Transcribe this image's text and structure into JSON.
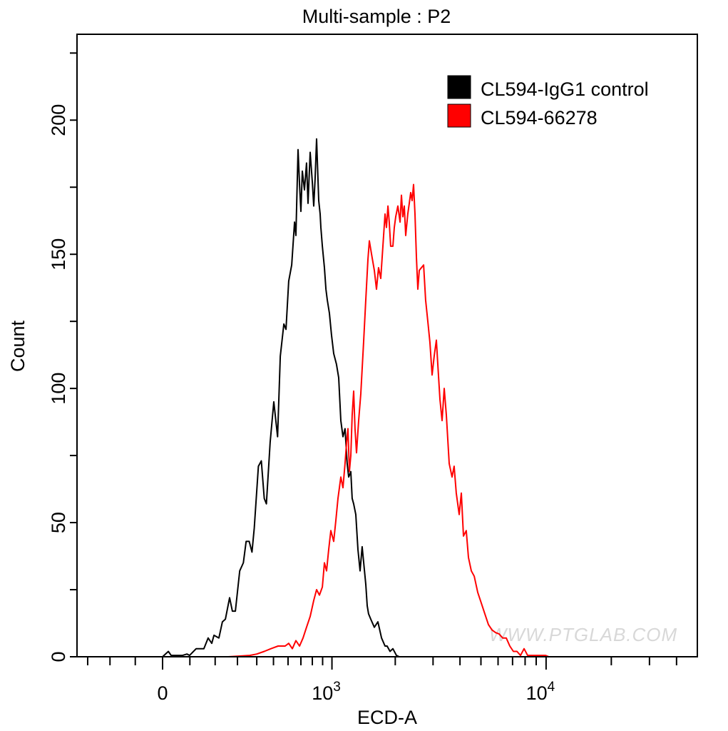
{
  "chart_data": {
    "type": "line",
    "title": "Multi-sample : P2",
    "xlabel": "ECD-A",
    "ylabel": "Count",
    "x_scale": "biexponential",
    "xlim": [
      -350,
      50000
    ],
    "ylim": [
      0,
      232
    ],
    "grid": false,
    "legend_position": "top-right",
    "watermark": "WWW.PTGLAB.COM",
    "x_major_ticks": [
      {
        "value": 0,
        "base": "0",
        "exp": ""
      },
      {
        "value": 1000,
        "base": "10",
        "exp": "3"
      },
      {
        "value": 10000,
        "base": "10",
        "exp": "4"
      }
    ],
    "x_minor_ticks": [
      -300,
      -200,
      -100,
      100,
      200,
      300,
      400,
      500,
      600,
      700,
      800,
      900,
      2000,
      3000,
      4000,
      5000,
      6000,
      7000,
      8000,
      9000,
      20000,
      30000,
      40000
    ],
    "y_major_ticks": [
      {
        "value": 0,
        "label": "0"
      },
      {
        "value": 50,
        "label": "50"
      },
      {
        "value": 100,
        "label": "100"
      },
      {
        "value": 150,
        "label": "150"
      },
      {
        "value": 200,
        "label": "200"
      }
    ],
    "y_minor_ticks": [
      25,
      75,
      125,
      175,
      225
    ],
    "series": [
      {
        "name": "CL594-IgG1 control",
        "color": "#000000",
        "points": [
          [
            0,
            0
          ],
          [
            21,
            2
          ],
          [
            31,
            0.5
          ],
          [
            73,
            0.5
          ],
          [
            89,
            1
          ],
          [
            99,
            0.5
          ],
          [
            124,
            3
          ],
          [
            154,
            3
          ],
          [
            171,
            7
          ],
          [
            186,
            5
          ],
          [
            195,
            8
          ],
          [
            216,
            7
          ],
          [
            231,
            13
          ],
          [
            244,
            14
          ],
          [
            263,
            22
          ],
          [
            276,
            17
          ],
          [
            290,
            17
          ],
          [
            311,
            32
          ],
          [
            329,
            35
          ],
          [
            343,
            43
          ],
          [
            359,
            43
          ],
          [
            374,
            39
          ],
          [
            386,
            48
          ],
          [
            409,
            71
          ],
          [
            426,
            73
          ],
          [
            443,
            59
          ],
          [
            456,
            57
          ],
          [
            479,
            80
          ],
          [
            502,
            95
          ],
          [
            527,
            82
          ],
          [
            545,
            112
          ],
          [
            570,
            124
          ],
          [
            585,
            122
          ],
          [
            605,
            140
          ],
          [
            627,
            146
          ],
          [
            649,
            162
          ],
          [
            660,
            157
          ],
          [
            677,
            189
          ],
          [
            689,
            176
          ],
          [
            700,
            166
          ],
          [
            712,
            181
          ],
          [
            730,
            174
          ],
          [
            748,
            184
          ],
          [
            761,
            169
          ],
          [
            780,
            188
          ],
          [
            800,
            177
          ],
          [
            813,
            168
          ],
          [
            826,
            178
          ],
          [
            840,
            193
          ],
          [
            861,
            170
          ],
          [
            875,
            165
          ],
          [
            882,
            160
          ],
          [
            897,
            153
          ],
          [
            919,
            145
          ],
          [
            934,
            137
          ],
          [
            949,
            133
          ],
          [
            972,
            128
          ],
          [
            995,
            120
          ],
          [
            1020,
            113
          ],
          [
            1052,
            109
          ],
          [
            1078,
            104
          ],
          [
            1104,
            88
          ],
          [
            1131,
            82
          ],
          [
            1157,
            85
          ],
          [
            1185,
            72
          ],
          [
            1204,
            67
          ],
          [
            1233,
            69
          ],
          [
            1252,
            59
          ],
          [
            1272,
            57
          ],
          [
            1303,
            53
          ],
          [
            1334,
            40
          ],
          [
            1365,
            32
          ],
          [
            1397,
            41
          ],
          [
            1453,
            27
          ],
          [
            1476,
            19
          ],
          [
            1498,
            16
          ],
          [
            1534,
            14
          ],
          [
            1595,
            11
          ],
          [
            1658,
            13
          ],
          [
            1724,
            7
          ],
          [
            1791,
            4
          ],
          [
            1832,
            4
          ],
          [
            1890,
            2
          ],
          [
            1949,
            3
          ],
          [
            2026,
            0.5
          ],
          [
            2089,
            0
          ],
          [
            3305,
            0
          ]
        ]
      },
      {
        "name": "CL594-66278",
        "color": "#ff0000",
        "points": [
          [
            257,
            0
          ],
          [
            362,
            0.5
          ],
          [
            400,
            1
          ],
          [
            443,
            2
          ],
          [
            484,
            3
          ],
          [
            530,
            4
          ],
          [
            579,
            4
          ],
          [
            605,
            5
          ],
          [
            632,
            3
          ],
          [
            660,
            6
          ],
          [
            689,
            4
          ],
          [
            718,
            7
          ],
          [
            748,
            11
          ],
          [
            780,
            15
          ],
          [
            813,
            21
          ],
          [
            840,
            25
          ],
          [
            868,
            23
          ],
          [
            897,
            26
          ],
          [
            919,
            35
          ],
          [
            941,
            32
          ],
          [
            964,
            40
          ],
          [
            988,
            47
          ],
          [
            1020,
            43
          ],
          [
            1045,
            51
          ],
          [
            1070,
            59
          ],
          [
            1104,
            67
          ],
          [
            1131,
            63
          ],
          [
            1157,
            72
          ],
          [
            1177,
            80
          ],
          [
            1195,
            85
          ],
          [
            1214,
            69
          ],
          [
            1233,
            75
          ],
          [
            1252,
            90
          ],
          [
            1272,
            99
          ],
          [
            1292,
            85
          ],
          [
            1313,
            76
          ],
          [
            1344,
            88
          ],
          [
            1376,
            98
          ],
          [
            1419,
            117
          ],
          [
            1453,
            133
          ],
          [
            1488,
            148
          ],
          [
            1511,
            155
          ],
          [
            1547,
            150
          ],
          [
            1595,
            144
          ],
          [
            1633,
            137
          ],
          [
            1670,
            145
          ],
          [
            1710,
            141
          ],
          [
            1750,
            153
          ],
          [
            1791,
            165
          ],
          [
            1819,
            160
          ],
          [
            1848,
            168
          ],
          [
            1875,
            162
          ],
          [
            1904,
            153
          ],
          [
            1949,
            153
          ],
          [
            1980,
            160
          ],
          [
            2010,
            164
          ],
          [
            2057,
            168
          ],
          [
            2106,
            162
          ],
          [
            2137,
            172
          ],
          [
            2171,
            164
          ],
          [
            2204,
            168
          ],
          [
            2238,
            157
          ],
          [
            2289,
            165
          ],
          [
            2325,
            169
          ],
          [
            2361,
            173
          ],
          [
            2398,
            170
          ],
          [
            2434,
            176
          ],
          [
            2472,
            165
          ],
          [
            2511,
            149
          ],
          [
            2549,
            137
          ],
          [
            2588,
            144
          ],
          [
            2648,
            145
          ],
          [
            2711,
            146
          ],
          [
            2771,
            133
          ],
          [
            2836,
            125
          ],
          [
            2902,
            117
          ],
          [
            2970,
            105
          ],
          [
            3037,
            112
          ],
          [
            3109,
            118
          ],
          [
            3156,
            109
          ],
          [
            3230,
            96
          ],
          [
            3305,
            88
          ],
          [
            3380,
            100
          ],
          [
            3458,
            90
          ],
          [
            3564,
            72
          ],
          [
            3675,
            67
          ],
          [
            3757,
            71
          ],
          [
            3845,
            61
          ],
          [
            3967,
            53
          ],
          [
            4056,
            61
          ],
          [
            4151,
            45
          ],
          [
            4277,
            47
          ],
          [
            4379,
            37
          ],
          [
            4512,
            32
          ],
          [
            4655,
            30
          ],
          [
            4831,
            24
          ],
          [
            5018,
            20
          ],
          [
            5212,
            16
          ],
          [
            5413,
            12
          ],
          [
            5624,
            10
          ],
          [
            5845,
            9
          ],
          [
            6069,
            8.5
          ],
          [
            6304,
            7
          ],
          [
            6548,
            7
          ],
          [
            6797,
            4
          ],
          [
            7062,
            2
          ],
          [
            7334,
            2
          ],
          [
            7619,
            0.5
          ],
          [
            7915,
            3
          ],
          [
            8221,
            0.5
          ],
          [
            8871,
            0.5
          ],
          [
            9931,
            0.5
          ],
          [
            10312,
            0
          ]
        ]
      }
    ]
  }
}
